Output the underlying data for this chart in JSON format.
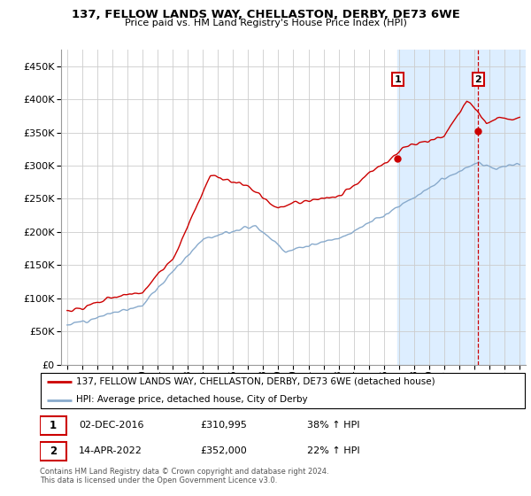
{
  "title": "137, FELLOW LANDS WAY, CHELLASTON, DERBY, DE73 6WE",
  "subtitle": "Price paid vs. HM Land Registry's House Price Index (HPI)",
  "legend_label_red": "137, FELLOW LANDS WAY, CHELLASTON, DERBY, DE73 6WE (detached house)",
  "legend_label_blue": "HPI: Average price, detached house, City of Derby",
  "footnote": "Contains HM Land Registry data © Crown copyright and database right 2024.\nThis data is licensed under the Open Government Licence v3.0.",
  "event1_date": "02-DEC-2016",
  "event1_price": "£310,995",
  "event1_hpi": "38% ↑ HPI",
  "event2_date": "14-APR-2022",
  "event2_price": "£352,000",
  "event2_hpi": "22% ↑ HPI",
  "red_color": "#cc0000",
  "blue_color": "#88aacc",
  "shaded_color": "#ddeeff",
  "event_line_color": "#cc0000",
  "ylim": [
    0,
    475000
  ],
  "yticks": [
    0,
    50000,
    100000,
    150000,
    200000,
    250000,
    300000,
    350000,
    400000,
    450000
  ],
  "event1_year": 2016.917,
  "event2_year": 2022.25,
  "event1_val": 310995,
  "event2_val": 352000
}
